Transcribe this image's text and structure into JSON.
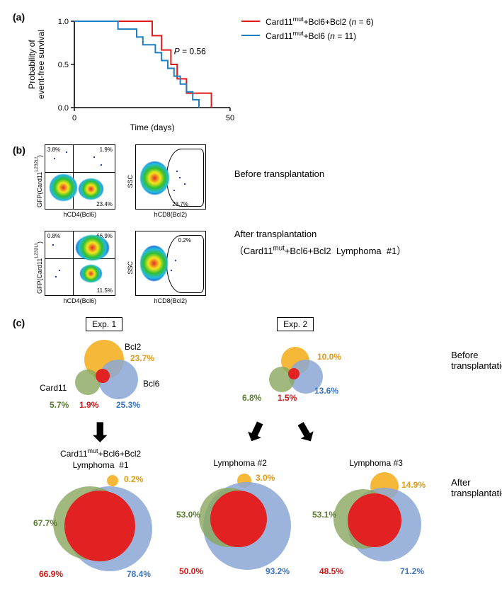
{
  "panel_labels": {
    "a": "(a)",
    "b": "(b)",
    "c": "(c)"
  },
  "survival": {
    "type": "kaplan-meier",
    "x_label": "Time (days)",
    "y_label": "Probability of\nevent-free survival",
    "xlim": [
      0,
      50
    ],
    "ylim": [
      0,
      1.0
    ],
    "xticks": [
      0,
      50
    ],
    "yticks": [
      0.0,
      0.5,
      1.0
    ],
    "pvalue_text": "P = 0.56",
    "pvalue_pos": [
      32,
      0.62
    ],
    "legend": [
      {
        "label_html": "Card11^mut+Bcl6+Bcl2 (n = 6)",
        "color": "#e01a1a"
      },
      {
        "label_html": "Card11^mut+Bcl6 (n = 11)",
        "color": "#1c7fbf"
      }
    ],
    "series": [
      {
        "color": "#e01a1a",
        "line_width": 2,
        "steps": [
          [
            0,
            1.0
          ],
          [
            25,
            1.0
          ],
          [
            25,
            0.833
          ],
          [
            28,
            0.833
          ],
          [
            28,
            0.667
          ],
          [
            31,
            0.667
          ],
          [
            31,
            0.5
          ],
          [
            33,
            0.5
          ],
          [
            33,
            0.333
          ],
          [
            36,
            0.333
          ],
          [
            36,
            0.167
          ],
          [
            44,
            0.167
          ],
          [
            44,
            0.0
          ]
        ]
      },
      {
        "color": "#1c7fbf",
        "line_width": 2,
        "steps": [
          [
            0,
            1.0
          ],
          [
            14,
            1.0
          ],
          [
            14,
            0.909
          ],
          [
            20,
            0.909
          ],
          [
            20,
            0.818
          ],
          [
            22,
            0.818
          ],
          [
            22,
            0.727
          ],
          [
            26,
            0.727
          ],
          [
            26,
            0.636
          ],
          [
            28,
            0.636
          ],
          [
            28,
            0.545
          ],
          [
            30,
            0.545
          ],
          [
            30,
            0.455
          ],
          [
            32,
            0.455
          ],
          [
            32,
            0.364
          ],
          [
            34,
            0.364
          ],
          [
            34,
            0.273
          ],
          [
            36,
            0.273
          ],
          [
            36,
            0.182
          ],
          [
            38,
            0.182
          ],
          [
            38,
            0.091
          ],
          [
            40,
            0.091
          ],
          [
            40,
            0.0
          ]
        ]
      }
    ],
    "axis_color": "#000000",
    "axis_width": 1.6,
    "label_fontsize": 12,
    "tick_fontsize": 11
  },
  "facs": {
    "ylabel1": "GFP(Card11^L232LI)",
    "xlabel1": "hCD4(Bcl6)",
    "ylabel2": "SSC",
    "xlabel2": "hCD8(Bcl2)",
    "right_before": "Before transplantation",
    "right_after": "After transplantation",
    "right_after_paren": "（Card11^mut+Bcl6+Bcl2  Lymphoma  #1）",
    "before": {
      "left": {
        "tl": "3.8%",
        "tr": "1.9%",
        "br": "23.4%",
        "bl": ""
      },
      "right": {
        "gate": "23.7%"
      }
    },
    "after": {
      "left": {
        "tl": "0.8%",
        "tr": "66.9%",
        "br": "11.5%",
        "bl": ""
      },
      "right": {
        "gate": "0.2%"
      }
    },
    "density_colors": {
      "blue": "#1941c4",
      "cyan": "#25b9e6",
      "green": "#2fbf2f",
      "yellow": "#f7e71d",
      "red": "#e02a2a"
    }
  },
  "panel_c": {
    "exp1_title": "Exp. 1",
    "exp2_title": "Exp. 2",
    "gene_labels": {
      "bcl2": "Bcl2",
      "card11": "Card11",
      "bcl6": "Bcl6"
    },
    "before_label": "Before transplantation",
    "after_label": "After transplantation",
    "lymphoma_header": "Card11^mut+Bcl6+Bcl2\nLymphoma  #1",
    "lymphoma2": "Lymphoma  #2",
    "lymphoma3": "Lymphoma  #3",
    "colors": {
      "bcl2": "#f4b024",
      "card11": "#8aa85e",
      "bcl6": "#8ba7d6",
      "all": "#e22222"
    },
    "pct_label_colors": {
      "bcl2": "#dd9a19",
      "card11": "#5a7a2f",
      "bcl6": "#3b74c1",
      "all": "#d01414"
    },
    "exp1_before": {
      "bcl2": "23.7%",
      "card11": "5.7%",
      "bcl6": "25.3%",
      "all": "1.9%"
    },
    "exp2_before": {
      "bcl2": "10.0%",
      "card11": "6.8%",
      "bcl6": "13.6%",
      "all": "1.5%"
    },
    "after1": {
      "card11": "67.7%",
      "all": "66.9%",
      "bcl2": "0.2%",
      "bcl6": "78.4%"
    },
    "after2": {
      "card11": "53.0%",
      "all": "50.0%",
      "bcl2": "3.0%",
      "bcl6": "93.2%"
    },
    "after3": {
      "card11": "53.1%",
      "all": "48.5%",
      "bcl2": "14.9%",
      "bcl6": "71.2%"
    }
  }
}
